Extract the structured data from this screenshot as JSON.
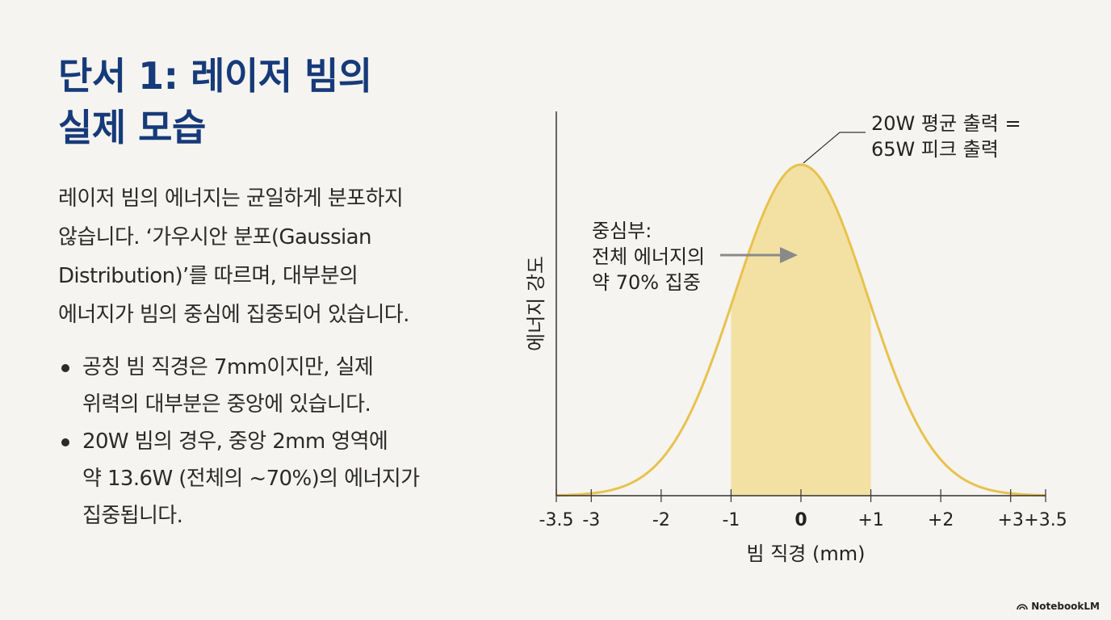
{
  "slide": {
    "title_lines": [
      "단서 1: 레이저 빔의",
      "실제 모습"
    ],
    "intro_lines": [
      "레이저 빔의 에너지는 균일하게 분포하지",
      "않습니다. ‘가우시안 분포(Gaussian",
      "Distribution)’를 따르며, 대부분의",
      "에너지가 빔의 중심에 집중되어 있습니다."
    ],
    "bullets": [
      {
        "lines": [
          "공칭 빔 직경은 7mm이지만, 실제",
          "위력의 대부분은 중앙에 있습니다."
        ]
      },
      {
        "lines": [
          "20W 빔의 경우, 중앙 2mm 영역에",
          "약 13.6W (전체의 ~70%)의 에너지가",
          "집중됩니다."
        ]
      }
    ]
  },
  "chart_data": {
    "type": "area",
    "xlabel": "빔 직경 (mm)",
    "ylabel": "에너지 강도",
    "xlim": [
      -3.5,
      3.5
    ],
    "x_ticks": [
      -3.5,
      -3,
      -2,
      -1,
      0,
      1,
      2,
      3,
      3.5
    ],
    "x_tick_labels": [
      "-3.5",
      "-3",
      "-2",
      "-1",
      "0",
      "+1",
      "+2",
      "+3",
      "+3.5"
    ],
    "emphasized_tick": "0",
    "curve": "gaussian",
    "sigma": 0.95,
    "x": [
      -3.5,
      -3,
      -2.5,
      -2,
      -1.5,
      -1,
      -0.5,
      0,
      0.5,
      1,
      1.5,
      2,
      2.5,
      3,
      3.5
    ],
    "y": [
      0.001,
      0.007,
      0.032,
      0.109,
      0.288,
      0.575,
      0.871,
      1.0,
      0.871,
      0.575,
      0.288,
      0.109,
      0.032,
      0.007,
      0.001
    ],
    "highlight_range": [
      -1,
      1
    ],
    "annotations": {
      "peak_lines": [
        "20W 평균 출력 =",
        "65W 피크 출력"
      ],
      "center_lines": [
        "중심부:",
        "전체 에너지의",
        "약 70% 집중"
      ]
    },
    "grid": false
  },
  "colors": {
    "title": "#163a7a",
    "curve": "#e8c24e",
    "fill": "#f3e1a4",
    "axis": "#333333",
    "arrow": "#8a8a8a"
  },
  "watermark": {
    "text": "NotebookLM",
    "icon": "notebooklm-logo-icon"
  }
}
